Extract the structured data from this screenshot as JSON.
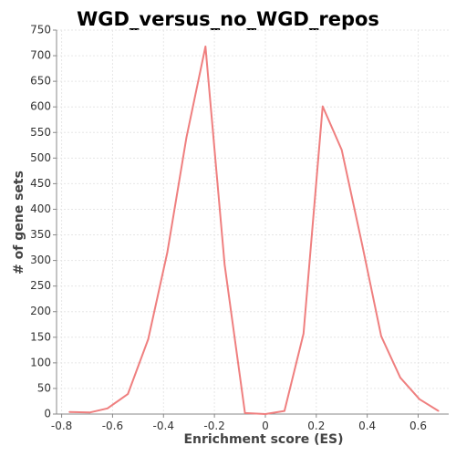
{
  "chart_data": {
    "type": "line",
    "title": "WGD_versus_no_WGD_repos",
    "xlabel": "Enrichment score (ES)",
    "ylabel": "# of gene sets",
    "xlim": [
      -0.82,
      0.72
    ],
    "ylim": [
      0,
      750
    ],
    "xticks": [
      -0.8,
      -0.6,
      -0.4,
      -0.2,
      0,
      0.2,
      0.4,
      0.6
    ],
    "xtick_labels": [
      "-0.8",
      "-0.6",
      "-0.4",
      "-0.2",
      "0",
      "0.2",
      "0.4",
      "0.6"
    ],
    "yticks": [
      0,
      50,
      100,
      150,
      200,
      250,
      300,
      350,
      400,
      450,
      500,
      550,
      600,
      650,
      700,
      750
    ],
    "ytick_labels": [
      "0",
      "50",
      "100",
      "150",
      "200",
      "250",
      "300",
      "350",
      "400",
      "450",
      "500",
      "550",
      "600",
      "650",
      "700",
      "750"
    ],
    "grid": true,
    "series": [
      {
        "color": "#ef7f7f",
        "x": [
          -0.77,
          -0.69,
          -0.62,
          -0.54,
          -0.46,
          -0.385,
          -0.31,
          -0.235,
          -0.16,
          -0.08,
          0.0,
          0.075,
          0.15,
          0.225,
          0.3,
          0.38,
          0.455,
          0.53,
          0.605,
          0.68
        ],
        "y": [
          4,
          3,
          11,
          39,
          146,
          316,
          540,
          718,
          292,
          2,
          0,
          6,
          157,
          601,
          516,
          331,
          152,
          71,
          29,
          6
        ]
      }
    ]
  }
}
